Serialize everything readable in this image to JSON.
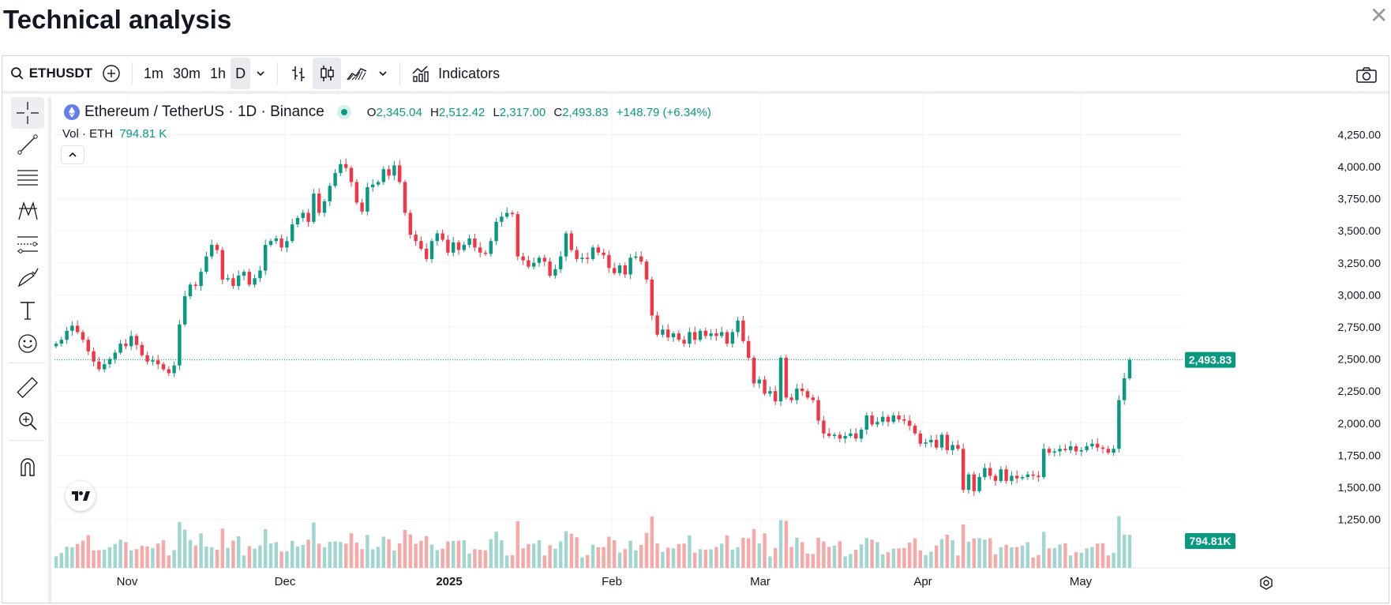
{
  "page": {
    "title": "Technical analysis",
    "close_icon": "close-icon"
  },
  "toolbar": {
    "symbol": "ETHUSDT",
    "intervals": [
      "1m",
      "30m",
      "1h",
      "D"
    ],
    "active_interval": "D",
    "indicators_label": "Indicators"
  },
  "legend": {
    "title": "Ethereum / TetherUS · 1D · Binance",
    "open_key": "O",
    "open": "2,345.04",
    "high_key": "H",
    "high": "2,512.42",
    "low_key": "L",
    "low": "2,317.00",
    "close_key": "C",
    "close": "2,493.83",
    "change": "+148.79 (+6.34%)",
    "vol_label": "Vol · ETH",
    "vol_value": "794.81 K"
  },
  "colors": {
    "up": "#089981",
    "down": "#f23645",
    "vol_up": "#9fd6cf",
    "vol_down": "#f7a9a7",
    "grid": "#f0f3fa"
  },
  "chart_data": {
    "type": "candlestick",
    "title": "Ethereum / TetherUS · 1D · Binance",
    "y_ticks": [
      "4,250.00",
      "4,000.00",
      "3,750.00",
      "3,500.00",
      "3,250.00",
      "3,000.00",
      "2,750.00",
      "2,500.00",
      "2,250.00",
      "2,000.00",
      "1,750.00",
      "1,500.00",
      "1,250.00"
    ],
    "x_ticks": [
      "Nov",
      "Dec",
      "2025",
      "Feb",
      "Mar",
      "Apr",
      "May"
    ],
    "last_price": "2,493.83",
    "last_volume": "794.81K",
    "closes": [
      2620,
      2650,
      2720,
      2760,
      2710,
      2650,
      2560,
      2480,
      2420,
      2460,
      2500,
      2550,
      2620,
      2600,
      2680,
      2610,
      2530,
      2480,
      2490,
      2460,
      2420,
      2390,
      2450,
      2770,
      2990,
      3080,
      3070,
      3180,
      3300,
      3390,
      3350,
      3120,
      3130,
      3070,
      3150,
      3180,
      3080,
      3130,
      3190,
      3390,
      3420,
      3440,
      3370,
      3420,
      3550,
      3600,
      3640,
      3570,
      3790,
      3640,
      3730,
      3850,
      3950,
      4020,
      3990,
      3880,
      3720,
      3650,
      3840,
      3860,
      3880,
      3980,
      3930,
      4010,
      3880,
      3640,
      3470,
      3420,
      3360,
      3280,
      3420,
      3480,
      3430,
      3330,
      3410,
      3350,
      3390,
      3440,
      3370,
      3330,
      3320,
      3420,
      3570,
      3610,
      3640,
      3630,
      3300,
      3270,
      3220,
      3250,
      3290,
      3260,
      3150,
      3200,
      3300,
      3480,
      3350,
      3280,
      3290,
      3280,
      3370,
      3330,
      3310,
      3210,
      3170,
      3230,
      3160,
      3290,
      3300,
      3260,
      3120,
      2840,
      2690,
      2730,
      2670,
      2700,
      2650,
      2620,
      2710,
      2650,
      2720,
      2680,
      2700,
      2680,
      2710,
      2620,
      2710,
      2800,
      2640,
      2510,
      2310,
      2340,
      2230,
      2250,
      2170,
      2510,
      2200,
      2180,
      2270,
      2250,
      2200,
      2180,
      2020,
      1920,
      1900,
      1910,
      1880,
      1900,
      1920,
      1880,
      1950,
      2060,
      1990,
      2010,
      2050,
      2010,
      2060,
      2030,
      2020,
      1980,
      1920,
      1840,
      1850,
      1870,
      1810,
      1910,
      1790,
      1830,
      1800,
      1480,
      1600,
      1470,
      1580,
      1650,
      1590,
      1550,
      1640,
      1550,
      1590,
      1570,
      1580,
      1600,
      1590,
      1580,
      1800,
      1770,
      1780,
      1800,
      1790,
      1820,
      1780,
      1790,
      1820,
      1840,
      1810,
      1800,
      1770,
      1800,
      2180,
      2350,
      2494
    ]
  }
}
